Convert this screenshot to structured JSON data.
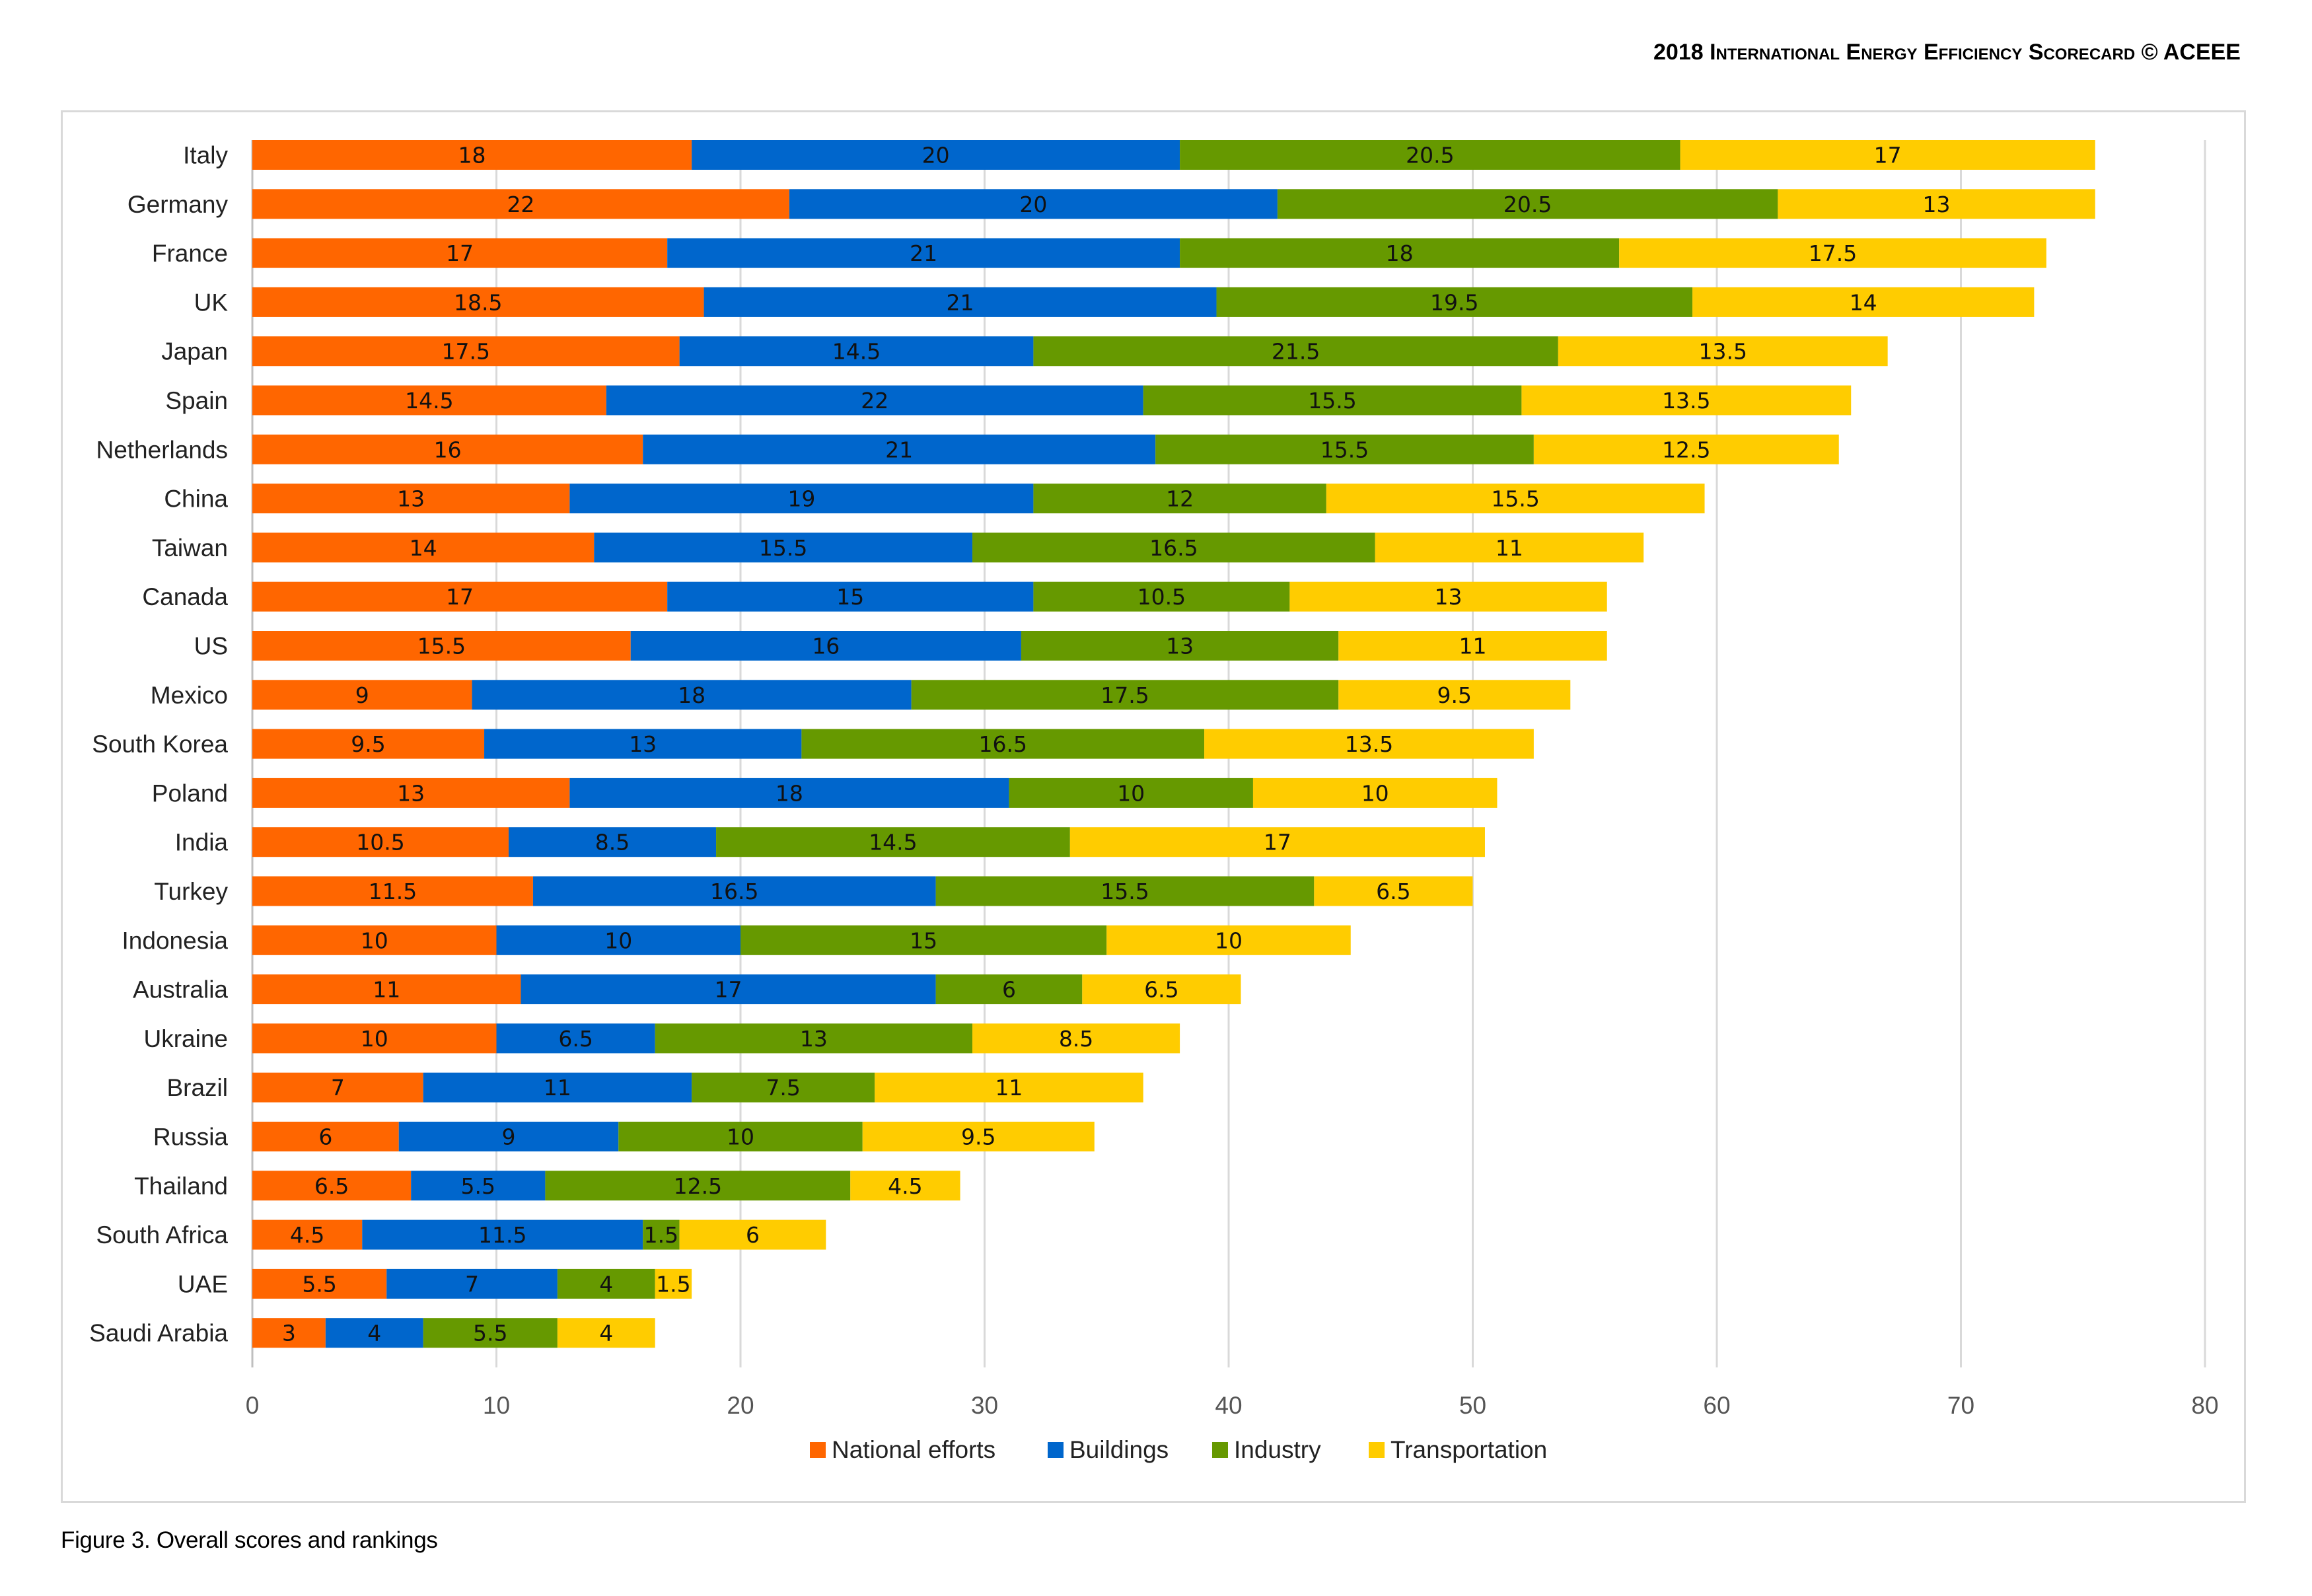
{
  "header": {
    "year": "2018",
    "title": "International Energy Efficiency Scorecard",
    "copyright": "© ACEEE"
  },
  "caption": "Figure 3. Overall scores and rankings",
  "colors": {
    "National efforts": "#ff6600",
    "Buildings": "#0066cc",
    "Industry": "#669900",
    "Transportation": "#ffcc00",
    "grid": "#d9d9d9"
  },
  "chart_data": {
    "type": "bar",
    "orientation": "horizontal",
    "stacked": true,
    "title": "",
    "xlabel": "",
    "ylabel": "",
    "xlim": [
      0,
      80
    ],
    "xticks": [
      0,
      10,
      20,
      30,
      40,
      50,
      60,
      70,
      80
    ],
    "grid": "vertical",
    "legend": "bottom",
    "categories": [
      "Italy",
      "Germany",
      "France",
      "UK",
      "Japan",
      "Spain",
      "Netherlands",
      "China",
      "Taiwan",
      "Canada",
      "US",
      "Mexico",
      "South Korea",
      "Poland",
      "India",
      "Turkey",
      "Indonesia",
      "Australia",
      "Ukraine",
      "Brazil",
      "Russia",
      "Thailand",
      "South Africa",
      "UAE",
      "Saudi Arabia"
    ],
    "series": [
      {
        "name": "National efforts",
        "values": [
          18,
          22,
          17,
          18.5,
          17.5,
          14.5,
          16,
          13,
          14,
          17,
          15.5,
          9,
          9.5,
          13,
          10.5,
          11.5,
          10,
          11,
          10,
          7,
          6,
          6.5,
          4.5,
          5.5,
          3
        ]
      },
      {
        "name": "Buildings",
        "values": [
          20,
          20,
          21,
          21,
          14.5,
          22,
          21,
          19,
          15.5,
          15,
          16,
          18,
          13,
          18,
          8.5,
          16.5,
          10,
          17,
          6.5,
          11,
          9,
          5.5,
          11.5,
          7,
          4
        ]
      },
      {
        "name": "Industry",
        "values": [
          20.5,
          20.5,
          18,
          19.5,
          21.5,
          15.5,
          15.5,
          12,
          16.5,
          10.5,
          13,
          17.5,
          16.5,
          10,
          14.5,
          15.5,
          15,
          6,
          13,
          7.5,
          10,
          12.5,
          1.5,
          4,
          5.5
        ]
      },
      {
        "name": "Transportation",
        "values": [
          17,
          13,
          17.5,
          14,
          13.5,
          13.5,
          12.5,
          15.5,
          11,
          13,
          11,
          9.5,
          13.5,
          10,
          17,
          6.5,
          10,
          6.5,
          8.5,
          11,
          9.5,
          4.5,
          6,
          1.5,
          4
        ]
      }
    ]
  }
}
